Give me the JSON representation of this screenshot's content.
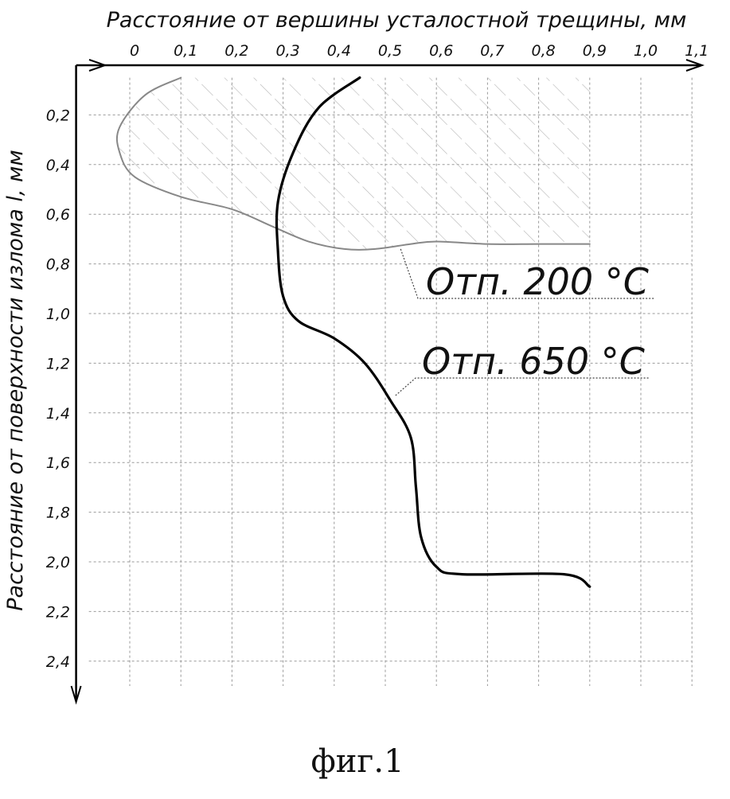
{
  "chart_data": {
    "type": "line",
    "xlabel": "Расстояние от вершины усталостной трещины, мм",
    "ylabel": "Расстояние от поверхности излома l, мм",
    "x_ticks": [
      "0",
      "0,1",
      "0,2",
      "0,3",
      "0,4",
      "0,5",
      "0,6",
      "0,7",
      "0,8",
      "0,9",
      "1,0",
      "1,1"
    ],
    "y_ticks": [
      "0,2",
      "0,4",
      "0,6",
      "0,8",
      "1,0",
      "1,2",
      "1,4",
      "1,6",
      "1,8",
      "2,0",
      "2,2",
      "2,4"
    ],
    "xlim": [
      0,
      1.1
    ],
    "ylim": [
      0,
      2.5
    ],
    "y_inverted": true,
    "grid": true,
    "series": [
      {
        "name": "Отп. 200 °С",
        "color": "#888888",
        "hatched_region": true,
        "points": [
          [
            0.1,
            0.05
          ],
          [
            0.03,
            0.12
          ],
          [
            -0.02,
            0.25
          ],
          [
            -0.02,
            0.35
          ],
          [
            0.01,
            0.45
          ],
          [
            0.1,
            0.53
          ],
          [
            0.2,
            0.58
          ],
          [
            0.28,
            0.65
          ],
          [
            0.35,
            0.71
          ],
          [
            0.42,
            0.74
          ],
          [
            0.48,
            0.74
          ],
          [
            0.55,
            0.72
          ],
          [
            0.6,
            0.71
          ],
          [
            0.7,
            0.72
          ],
          [
            0.8,
            0.72
          ],
          [
            0.9,
            0.72
          ]
        ]
      },
      {
        "name": "Отп. 650 °С",
        "color": "#000000",
        "points": [
          [
            0.45,
            0.05
          ],
          [
            0.37,
            0.17
          ],
          [
            0.32,
            0.35
          ],
          [
            0.29,
            0.55
          ],
          [
            0.29,
            0.75
          ],
          [
            0.3,
            0.93
          ],
          [
            0.33,
            1.03
          ],
          [
            0.4,
            1.1
          ],
          [
            0.46,
            1.2
          ],
          [
            0.51,
            1.35
          ],
          [
            0.55,
            1.5
          ],
          [
            0.56,
            1.7
          ],
          [
            0.57,
            1.9
          ],
          [
            0.6,
            2.02
          ],
          [
            0.65,
            2.05
          ],
          [
            0.85,
            2.05
          ],
          [
            0.9,
            2.1
          ]
        ]
      }
    ],
    "annotations": [
      {
        "text": "Отп. 200 °С",
        "series": 0
      },
      {
        "text": "Отп. 650 °С",
        "series": 1
      }
    ]
  },
  "caption": "фиг.1"
}
